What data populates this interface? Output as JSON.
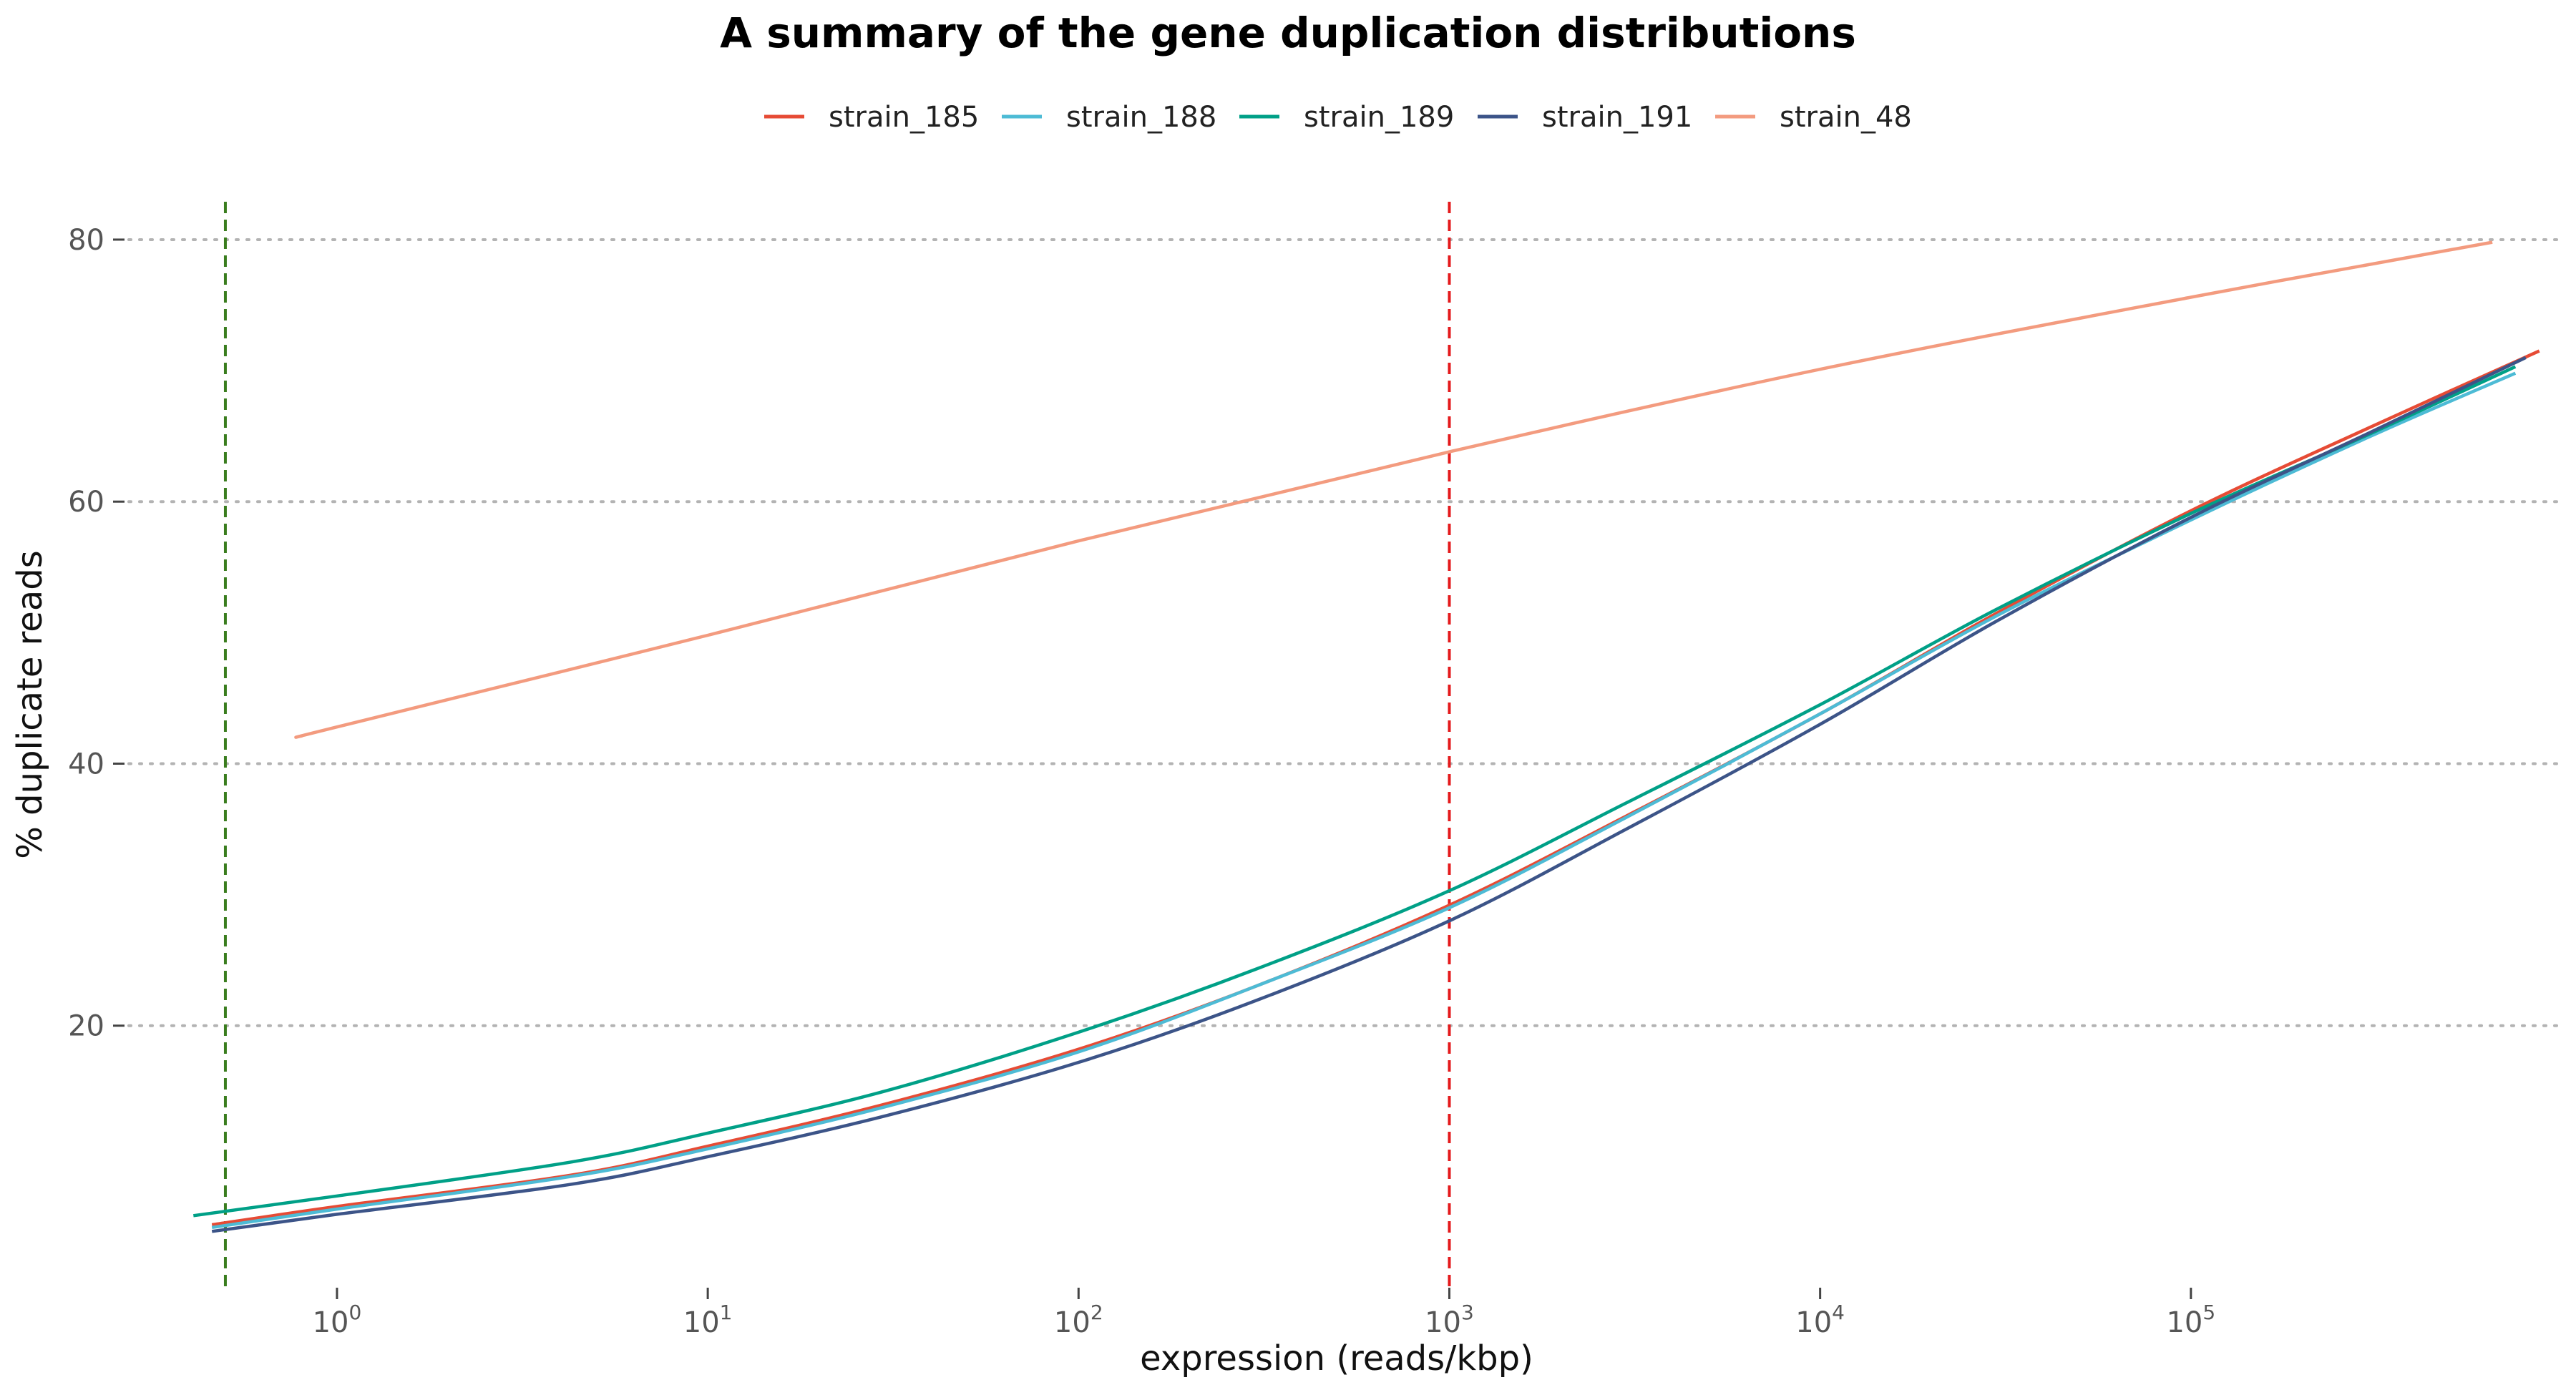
{
  "chart_data": {
    "type": "line",
    "title": "A summary of the gene duplication distributions",
    "xlabel": "expression (reads/kbp)",
    "ylabel": "% duplicate reads",
    "x_scale": "log10",
    "xlim": [
      0.3,
      1000000
    ],
    "ylim": [
      0,
      83
    ],
    "x_ticks": [
      1,
      10,
      100,
      1000,
      10000,
      100000
    ],
    "x_tick_labels": [
      {
        "base": "10",
        "exp": "0"
      },
      {
        "base": "10",
        "exp": "1"
      },
      {
        "base": "10",
        "exp": "2"
      },
      {
        "base": "10",
        "exp": "3"
      },
      {
        "base": "10",
        "exp": "4"
      },
      {
        "base": "10",
        "exp": "5"
      }
    ],
    "y_ticks": [
      20,
      40,
      60,
      80
    ],
    "y_tick_labels": [
      "20",
      "40",
      "60",
      "80"
    ],
    "grid": "horizontal-dotted",
    "legend_position": "top-center",
    "reference_lines": [
      {
        "x": 0.5,
        "color": "#3a7d1e",
        "style": "dashed"
      },
      {
        "x": 1000,
        "color": "#e41a1c",
        "style": "dashed"
      }
    ],
    "series": [
      {
        "name": "strain_185",
        "color": "#e64b35",
        "x": [
          0.46,
          1,
          4.3,
          10,
          30,
          100,
          300,
          1000,
          3000,
          10000,
          30000,
          100000,
          300000,
          870000
        ],
        "y": [
          4.8,
          6.2,
          8.6,
          10.8,
          14.0,
          18.2,
          23.0,
          29.2,
          36.0,
          43.8,
          51.5,
          59.3,
          65.6,
          71.5
        ]
      },
      {
        "name": "strain_188",
        "color": "#4dbbd5",
        "x": [
          0.46,
          1,
          4.3,
          10,
          30,
          100,
          300,
          1000,
          3000,
          10000,
          30000,
          100000,
          300000,
          750000
        ],
        "y": [
          4.6,
          6.0,
          8.5,
          10.6,
          13.8,
          18.0,
          23.0,
          29.0,
          35.9,
          43.8,
          51.3,
          58.6,
          64.9,
          69.8
        ]
      },
      {
        "name": "strain_189",
        "color": "#00a087",
        "x": [
          0.41,
          1,
          4.3,
          10,
          30,
          100,
          300,
          1000,
          3000,
          10000,
          30000,
          100000,
          300000,
          750000
        ],
        "y": [
          5.5,
          7.0,
          9.6,
          11.8,
          15.0,
          19.5,
          24.3,
          30.3,
          37.0,
          44.5,
          51.8,
          59.1,
          65.1,
          70.3
        ]
      },
      {
        "name": "strain_191",
        "color": "#3c5488",
        "x": [
          0.46,
          1,
          4.3,
          10,
          30,
          100,
          300,
          1000,
          3000,
          10000,
          30000,
          100000,
          300000,
          800000
        ],
        "y": [
          4.3,
          5.6,
          7.9,
          10.0,
          13.1,
          17.2,
          21.9,
          28.0,
          35.0,
          43.0,
          50.9,
          58.8,
          65.2,
          71.0
        ]
      },
      {
        "name": "strain_48",
        "color": "#f39b7f",
        "x": [
          0.8,
          1,
          10,
          100,
          1000,
          10000,
          100000,
          650000
        ],
        "y": [
          42.1,
          42.8,
          49.8,
          57.0,
          63.8,
          70.1,
          75.6,
          79.8
        ]
      }
    ]
  }
}
